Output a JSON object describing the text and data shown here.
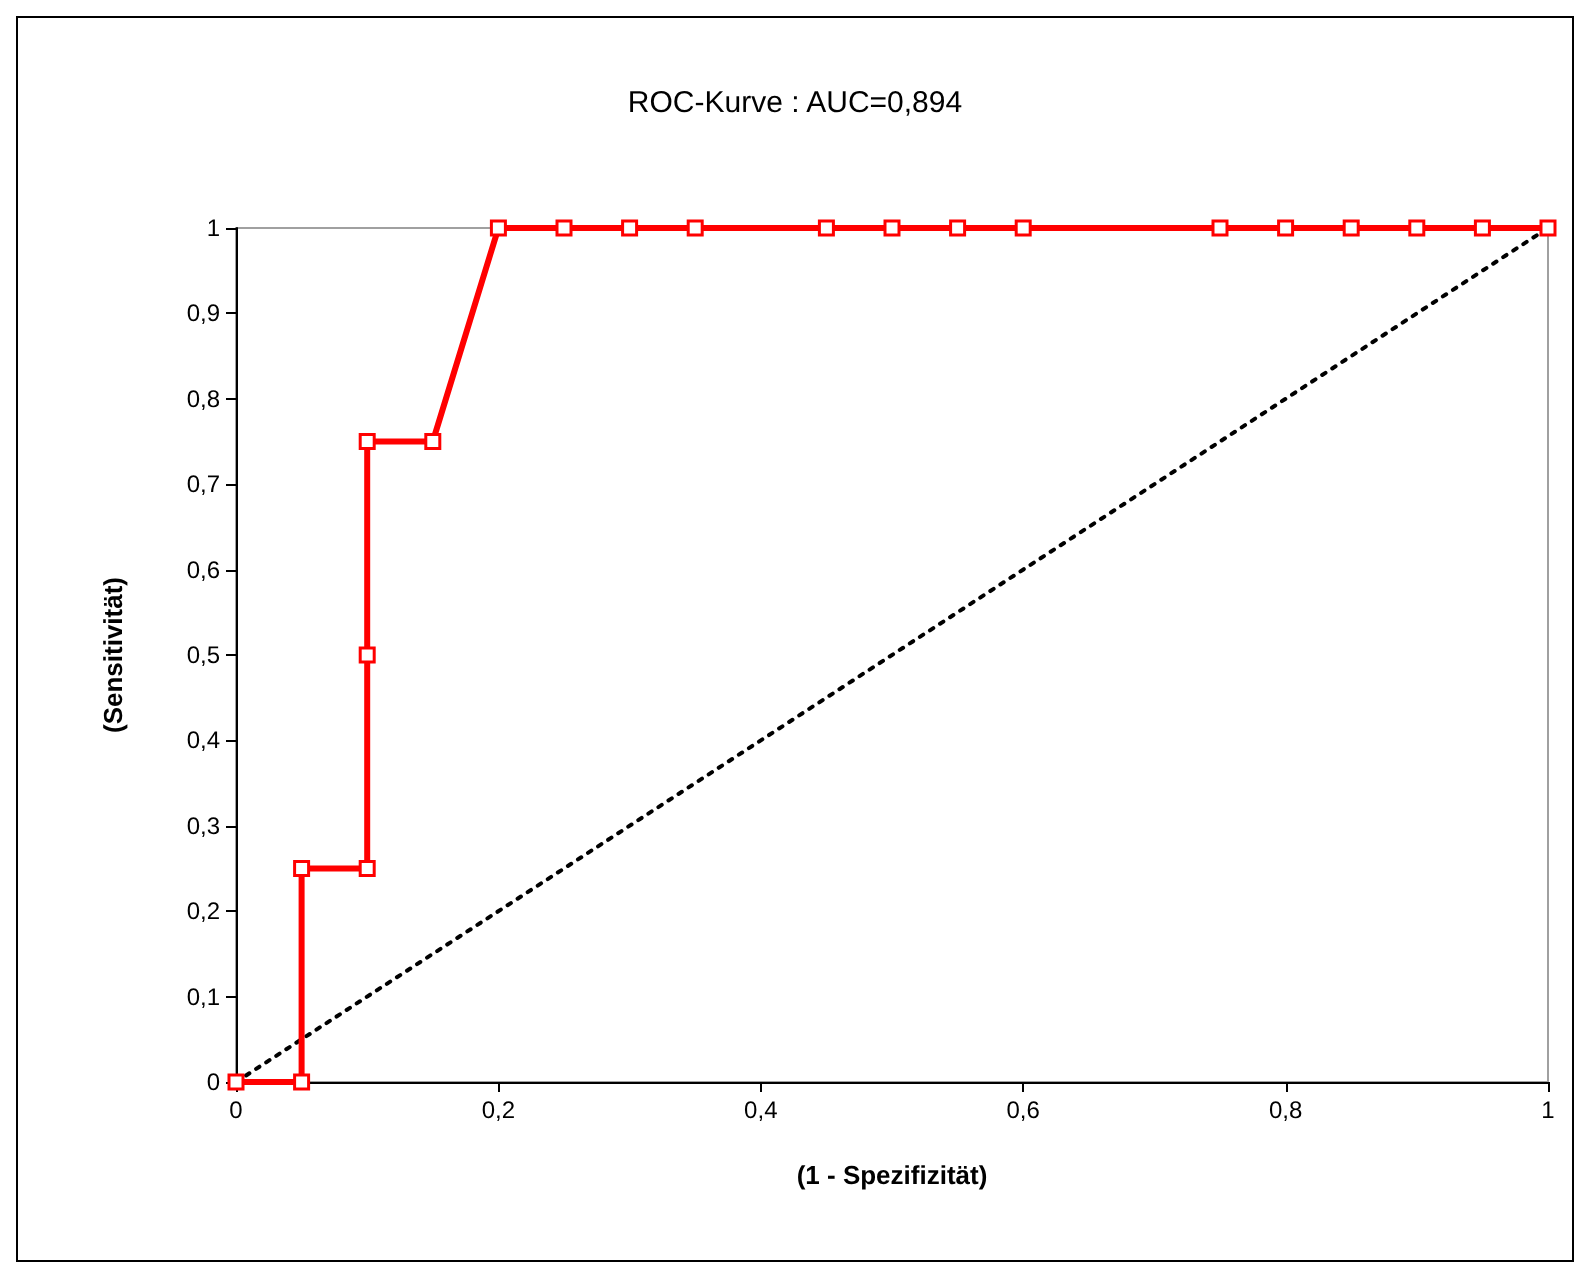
{
  "chart_data": {
    "type": "line",
    "title": "ROC-Kurve : AUC=0,894",
    "xlabel": "(1 - Spezifizität)",
    "ylabel": "(Sensitivität)",
    "xlim": [
      0,
      1
    ],
    "ylim": [
      0,
      1
    ],
    "xticks": [
      0,
      {
        "value": 0.2,
        "label": "0,2"
      },
      {
        "value": 0.4,
        "label": "0,4"
      },
      {
        "value": 0.6,
        "label": "0,6"
      },
      {
        "value": 0.8,
        "label": "0,8"
      },
      1
    ],
    "yticks": [
      0,
      {
        "value": 0.1,
        "label": "0,1"
      },
      {
        "value": 0.2,
        "label": "0,2"
      },
      {
        "value": 0.3,
        "label": "0,3"
      },
      {
        "value": 0.4,
        "label": "0,4"
      },
      {
        "value": 0.5,
        "label": "0,5"
      },
      {
        "value": 0.6,
        "label": "0,6"
      },
      {
        "value": 0.7,
        "label": "0,7"
      },
      {
        "value": 0.8,
        "label": "0,8"
      },
      {
        "value": 0.9,
        "label": "0,9"
      },
      1
    ],
    "series": [
      {
        "color": "#ff0000",
        "marker": "square",
        "line_style": "solid",
        "x": [
          0,
          0.05,
          0.05,
          0.1,
          0.1,
          0.1,
          0.15,
          0.2,
          0.25,
          0.3,
          0.35,
          0.45,
          0.5,
          0.55,
          0.6,
          0.75,
          0.8,
          0.85,
          0.9,
          0.95,
          1
        ],
        "values": [
          0,
          0,
          0.25,
          0.25,
          0.5,
          0.75,
          0.75,
          1,
          1,
          1,
          1,
          1,
          1,
          1,
          1,
          1,
          1,
          1,
          1,
          1,
          1
        ]
      },
      {
        "color": "#000000",
        "marker": "none",
        "line_style": "dotted",
        "x": [
          0,
          1
        ],
        "values": [
          0,
          1
        ]
      }
    ]
  }
}
